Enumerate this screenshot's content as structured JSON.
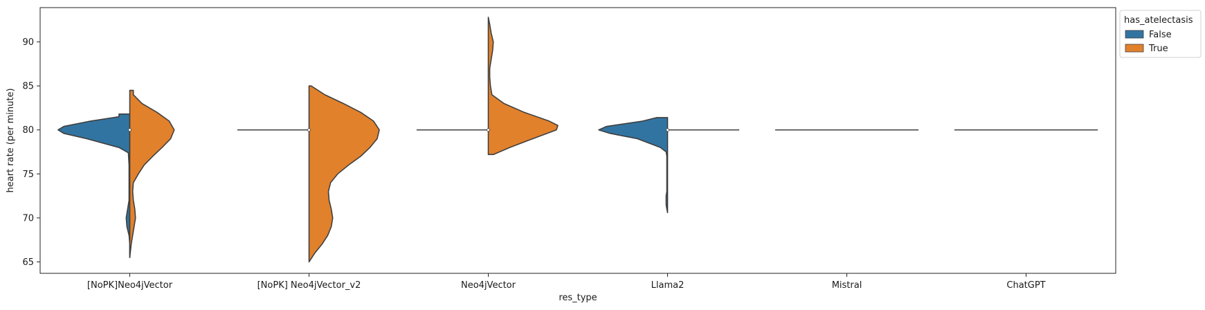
{
  "chart_data": {
    "type": "violin",
    "split": true,
    "xlabel": "res_type",
    "ylabel": "heart rate (per minute)",
    "ylim": [
      63.7,
      93.9
    ],
    "yticks": [
      65,
      70,
      75,
      80,
      85,
      90
    ],
    "categories": [
      "[NoPK]Neo4jVector",
      "[NoPK] Neo4jVector_v2",
      "Neo4jVector",
      "Llama2",
      "Mistral",
      "ChatGPT"
    ],
    "legend": {
      "title": "has_atelectasis",
      "position": "top-right, outside plot",
      "entries": [
        {
          "label": "False",
          "color": "#3274a1"
        },
        {
          "label": "True",
          "color": "#e1812c"
        }
      ]
    },
    "colors": {
      "False": "#3274a1",
      "True": "#e1812c",
      "outline": "#3f3f3f"
    },
    "violins": [
      {
        "category": "[NoPK]Neo4jVector",
        "False": {
          "range": [
            65.5,
            81.8
          ],
          "density": [
            [
              65.5,
              0.0
            ],
            [
              67,
              0.0
            ],
            [
              68,
              0.01
            ],
            [
              69,
              0.04
            ],
            [
              70,
              0.05
            ],
            [
              71,
              0.03
            ],
            [
              72,
              0.01
            ],
            [
              74,
              0.01
            ],
            [
              76,
              0.01
            ],
            [
              77.4,
              0.02
            ],
            [
              78,
              0.15
            ],
            [
              79,
              0.6
            ],
            [
              79.6,
              0.92
            ],
            [
              80,
              1.0
            ],
            [
              80.4,
              0.92
            ],
            [
              81,
              0.55
            ],
            [
              81.5,
              0.15
            ],
            [
              81.8,
              0.15
            ]
          ]
        },
        "True": {
          "range": [
            65.5,
            84.5
          ],
          "density": [
            [
              65.5,
              0.0
            ],
            [
              67,
              0.02
            ],
            [
              69,
              0.06
            ],
            [
              70,
              0.08
            ],
            [
              71,
              0.07
            ],
            [
              72,
              0.05
            ],
            [
              73,
              0.04
            ],
            [
              74,
              0.05
            ],
            [
              75,
              0.12
            ],
            [
              76,
              0.2
            ],
            [
              77,
              0.32
            ],
            [
              78,
              0.45
            ],
            [
              79,
              0.57
            ],
            [
              80,
              0.62
            ],
            [
              81,
              0.55
            ],
            [
              82,
              0.38
            ],
            [
              83,
              0.17
            ],
            [
              84,
              0.05
            ],
            [
              84.5,
              0.05
            ]
          ]
        },
        "median": 80
      },
      {
        "category": "[NoPK] Neo4jVector_v2",
        "False": {
          "range": [
            80,
            80
          ],
          "density": [
            [
              80,
              0.0
            ]
          ]
        },
        "True": {
          "range": [
            65,
            85
          ],
          "density": [
            [
              65,
              0.0
            ],
            [
              66,
              0.08
            ],
            [
              67,
              0.18
            ],
            [
              68,
              0.26
            ],
            [
              69,
              0.31
            ],
            [
              70,
              0.33
            ],
            [
              71,
              0.31
            ],
            [
              72,
              0.28
            ],
            [
              73,
              0.27
            ],
            [
              74,
              0.3
            ],
            [
              75,
              0.4
            ],
            [
              76,
              0.55
            ],
            [
              77,
              0.72
            ],
            [
              78,
              0.85
            ],
            [
              79,
              0.95
            ],
            [
              80,
              0.98
            ],
            [
              81,
              0.9
            ],
            [
              82,
              0.72
            ],
            [
              83,
              0.48
            ],
            [
              84,
              0.22
            ],
            [
              85,
              0.03
            ]
          ]
        },
        "median": 80
      },
      {
        "category": "Neo4jVector",
        "False": {
          "range": [
            80,
            80
          ],
          "density": [
            [
              80,
              0.0
            ]
          ]
        },
        "True": {
          "range": [
            77.2,
            92.8
          ],
          "density": [
            [
              77.2,
              0.07
            ],
            [
              78,
              0.3
            ],
            [
              79,
              0.62
            ],
            [
              80,
              0.95
            ],
            [
              80.5,
              0.97
            ],
            [
              81,
              0.85
            ],
            [
              82,
              0.5
            ],
            [
              83,
              0.22
            ],
            [
              84,
              0.05
            ],
            [
              85,
              0.03
            ],
            [
              86,
              0.02
            ],
            [
              87,
              0.02
            ],
            [
              88,
              0.04
            ],
            [
              89,
              0.06
            ],
            [
              90,
              0.07
            ],
            [
              91,
              0.04
            ],
            [
              92,
              0.02
            ],
            [
              92.8,
              0.0
            ]
          ]
        },
        "median": 80
      },
      {
        "category": "Llama2",
        "False": {
          "range": [
            70.6,
            81.4
          ],
          "density": [
            [
              70.6,
              0.0
            ],
            [
              71,
              0.01
            ],
            [
              71.5,
              0.02
            ],
            [
              72,
              0.02
            ],
            [
              72.5,
              0.02
            ],
            [
              73,
              0.01
            ],
            [
              74,
              0.01
            ],
            [
              75,
              0.01
            ],
            [
              77,
              0.01
            ],
            [
              77.5,
              0.02
            ],
            [
              78,
              0.1
            ],
            [
              79,
              0.42
            ],
            [
              79.6,
              0.8
            ],
            [
              80,
              0.96
            ],
            [
              80.4,
              0.85
            ],
            [
              81,
              0.35
            ],
            [
              81.4,
              0.15
            ]
          ]
        },
        "True": {
          "range": [
            80,
            80
          ],
          "density": [
            [
              80,
              0.0
            ]
          ]
        },
        "median": 80
      },
      {
        "category": "Mistral",
        "False": {
          "range": [
            80,
            80
          ],
          "density": [
            [
              80,
              0.0
            ]
          ]
        },
        "True": {
          "range": [
            80,
            80
          ],
          "density": [
            [
              80,
              0.0
            ]
          ]
        }
      },
      {
        "category": "ChatGPT",
        "False": {
          "range": [
            80,
            80
          ],
          "density": [
            [
              80,
              0.0
            ]
          ]
        },
        "True": {
          "range": [
            80,
            80
          ],
          "density": [
            [
              80,
              0.0
            ]
          ]
        }
      }
    ]
  }
}
